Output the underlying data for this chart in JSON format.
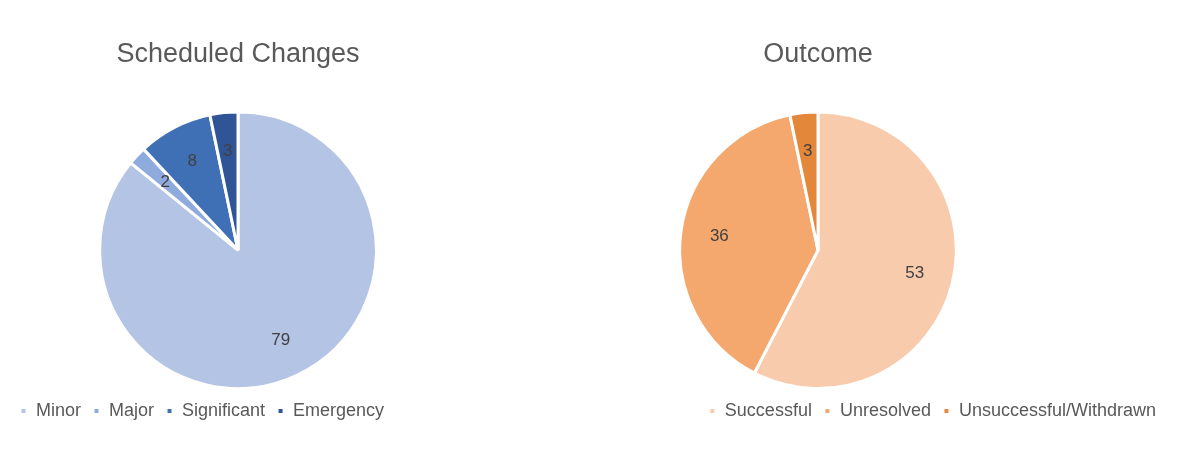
{
  "chart_data": [
    {
      "type": "pie",
      "title": "Scheduled Changes",
      "categories": [
        "Minor",
        "Major",
        "Significant",
        "Emergency"
      ],
      "values": [
        79,
        2,
        8,
        3
      ],
      "colors": [
        "#b4c4e4",
        "#8faadc",
        "#3f6fb5",
        "#2f5597"
      ],
      "data_labels": true,
      "legend": "bottom"
    },
    {
      "type": "pie",
      "title": "Outcome",
      "categories": [
        "Successful",
        "Unresolved",
        "Unsuccessful/Withdrawn"
      ],
      "values": [
        53,
        36,
        3
      ],
      "colors": [
        "#f8cbad",
        "#f4a86e",
        "#e3873a"
      ],
      "data_labels": true,
      "legend": "bottom"
    }
  ]
}
